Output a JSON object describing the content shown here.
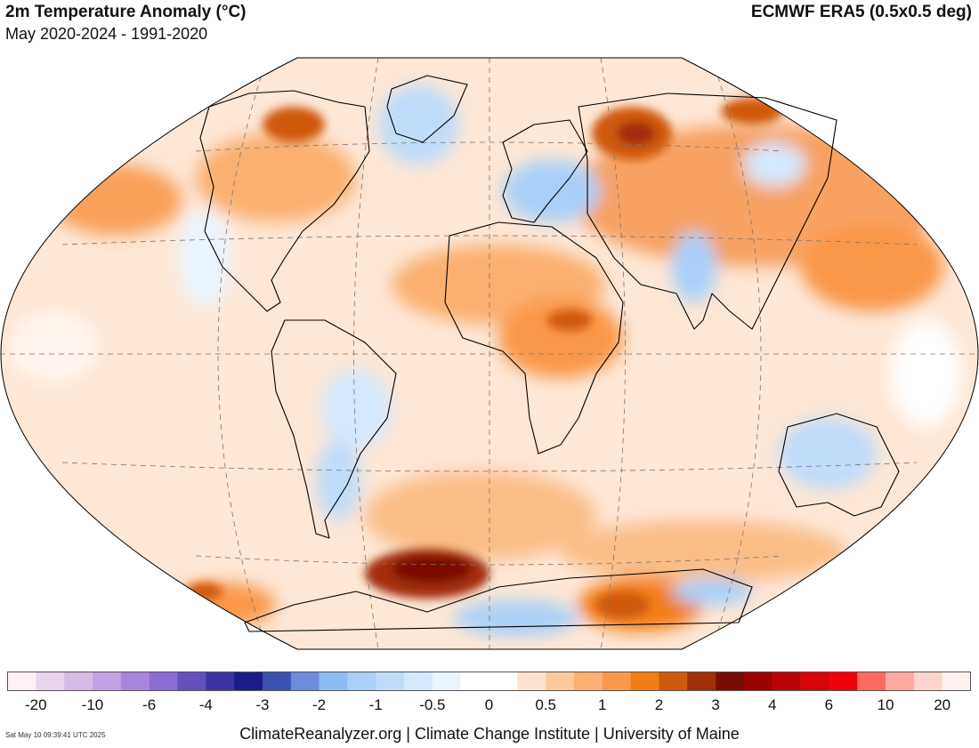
{
  "header": {
    "title": "2m Temperature Anomaly (°C)",
    "subtitle": "May 2020-2024 - 1991-2020",
    "dataset": "ECMWF ERA5 (0.5x0.5 deg)"
  },
  "colorbar": {
    "colors": [
      "#fff0f5",
      "#e8d4ee",
      "#d6baea",
      "#c2a2e4",
      "#a886de",
      "#8a6cd2",
      "#6650c0",
      "#3c34a6",
      "#1a1c8c",
      "#3a52b4",
      "#6a8cda",
      "#8cbcf4",
      "#a8d0f8",
      "#c0dcfa",
      "#d6e8fc",
      "#eaf4fe",
      "#ffffff",
      "#ffffff",
      "#fde3cf",
      "#fcc99a",
      "#fbb071",
      "#f9974a",
      "#f37d14",
      "#cf5a0c",
      "#a32f08",
      "#7a0c06",
      "#9c0404",
      "#bc0408",
      "#d8040a",
      "#f2000a",
      "#ff6a62",
      "#ffa8a0",
      "#ffd4cc",
      "#fff0f0"
    ],
    "tick_labels": [
      "-20",
      "-10",
      "-6",
      "-4",
      "-3",
      "-2",
      "-1",
      "-0.5",
      "0",
      "0.5",
      "1",
      "2",
      "3",
      "4",
      "6",
      "10",
      "20"
    ]
  },
  "map": {
    "ocean_base_color": "#fde7d6",
    "land_outline_color": "#000000",
    "graticule_color": "#777777"
  },
  "footer": {
    "credit": "ClimateReanalyzer.org | Climate Change Institute | University of Maine",
    "timestamp": "Sat May 10 09:39:41 UTC 2025"
  }
}
